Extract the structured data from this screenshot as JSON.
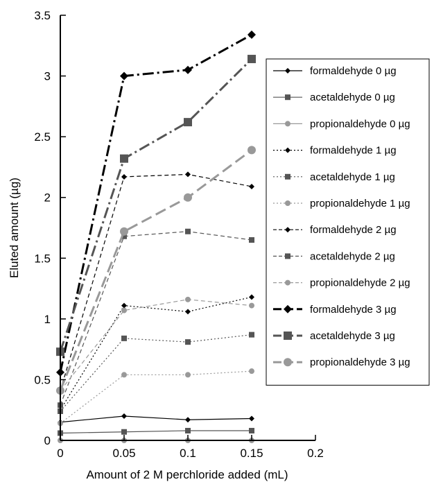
{
  "chart_data": {
    "type": "line",
    "title": "",
    "xlabel": "Amount of 2 M perchloride added (mL)",
    "ylabel": "Eluted amount (µg)",
    "xlim": [
      0,
      0.2
    ],
    "ylim": [
      0,
      3.5
    ],
    "x_ticks": [
      "0",
      "0.05",
      "0.1",
      "0.15",
      "0.2"
    ],
    "y_ticks": [
      "0",
      "0.5",
      "1",
      "1.5",
      "2",
      "2.5",
      "3",
      "3.5"
    ],
    "x": [
      0,
      0.05,
      0.1,
      0.15
    ],
    "grid": false,
    "legend_position": "right",
    "series": [
      {
        "name": "formaldehyde 0 µg",
        "values": [
          0.15,
          0.2,
          0.17,
          0.18
        ],
        "marker": "diamond",
        "color": "#000000",
        "dash": "solid",
        "width": "thin"
      },
      {
        "name": "acetaldehyde 0 µg",
        "values": [
          0.06,
          0.07,
          0.08,
          0.08
        ],
        "marker": "square",
        "color": "#555555",
        "dash": "solid",
        "width": "thin"
      },
      {
        "name": "propionaldehyde 0 µg",
        "values": [
          0.0,
          0.0,
          0.0,
          0.0
        ],
        "marker": "circle",
        "color": "#999999",
        "dash": "solid",
        "width": "thin"
      },
      {
        "name": "formaldehyde 1 µg",
        "values": [
          0.25,
          1.11,
          1.06,
          1.18
        ],
        "marker": "diamond",
        "color": "#000000",
        "dash": "dotted",
        "width": "thin"
      },
      {
        "name": "acetaldehyde 1 µg",
        "values": [
          0.24,
          0.84,
          0.81,
          0.87
        ],
        "marker": "square",
        "color": "#555555",
        "dash": "dotted",
        "width": "thin"
      },
      {
        "name": "propionaldehyde 1 µg",
        "values": [
          0.14,
          0.54,
          0.54,
          0.57
        ],
        "marker": "circle",
        "color": "#999999",
        "dash": "dotted",
        "width": "thin"
      },
      {
        "name": "formaldehyde 2 µg",
        "values": [
          0.41,
          2.17,
          2.19,
          2.09
        ],
        "marker": "diamond",
        "color": "#000000",
        "dash": "dashed",
        "width": "thin"
      },
      {
        "name": "acetaldehyde 2 µg",
        "values": [
          0.29,
          1.68,
          1.72,
          1.65
        ],
        "marker": "square",
        "color": "#555555",
        "dash": "dashed",
        "width": "thin"
      },
      {
        "name": "propionaldehyde 2 µg",
        "values": [
          0.41,
          1.07,
          1.16,
          1.11
        ],
        "marker": "circle",
        "color": "#999999",
        "dash": "dashed",
        "width": "thin"
      },
      {
        "name": "formaldehyde 3 µg",
        "values": [
          0.56,
          3.0,
          3.05,
          3.34
        ],
        "marker": "diamond",
        "color": "#000000",
        "dash": "dashdot",
        "width": "thick"
      },
      {
        "name": "acetaldehyde 3 µg",
        "values": [
          0.73,
          2.32,
          2.62,
          3.14
        ],
        "marker": "square",
        "color": "#555555",
        "dash": "dashdot",
        "width": "thick"
      },
      {
        "name": "propionaldehyde 3 µg",
        "values": [
          0.41,
          1.72,
          2.0,
          2.39
        ],
        "marker": "circle",
        "color": "#999999",
        "dash": "longdash",
        "width": "thick"
      }
    ]
  }
}
